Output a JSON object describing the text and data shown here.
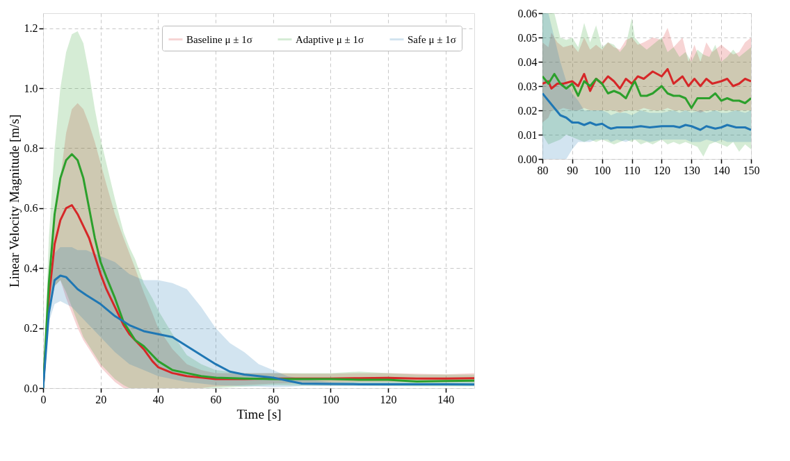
{
  "chart_data": [
    {
      "type": "line",
      "xlabel": "Time [s]",
      "ylabel": "Linear Velocity Magnitude [m/s]",
      "xlim": [
        0,
        150
      ],
      "ylim": [
        0,
        1.25
      ],
      "xticks": [
        0,
        20,
        40,
        60,
        80,
        100,
        120,
        140
      ],
      "yticks": [
        {
          "value": 0,
          "label": "0.0"
        },
        0.2,
        0.4,
        0.6,
        0.8,
        {
          "value": 1,
          "label": "1.0"
        },
        1.2
      ],
      "grid": true,
      "legend": "top right",
      "line_style": "solid",
      "series": [
        {
          "name": "Baseline μ ± 1σ",
          "color": "#d62728",
          "x": [
            0,
            2,
            4,
            6,
            8,
            10,
            12,
            14,
            16,
            18,
            20,
            22,
            25,
            28,
            30,
            32,
            35,
            38,
            40,
            45,
            50,
            55,
            60,
            70,
            80,
            90,
            100,
            110,
            120,
            130,
            140,
            150
          ],
          "values": [
            0,
            0.3,
            0.48,
            0.56,
            0.6,
            0.61,
            0.58,
            0.54,
            0.5,
            0.44,
            0.38,
            0.33,
            0.27,
            0.21,
            0.18,
            0.16,
            0.13,
            0.09,
            0.07,
            0.05,
            0.04,
            0.035,
            0.03,
            0.03,
            0.032,
            0.032,
            0.032,
            0.033,
            0.034,
            0.032,
            0.032,
            0.033
          ],
          "lower": [
            0,
            0.25,
            0.34,
            0.36,
            0.3,
            0.25,
            0.2,
            0.16,
            0.13,
            0.1,
            0.07,
            0.05,
            0.02,
            0,
            0,
            0,
            0,
            0,
            0,
            0,
            0,
            0,
            0.005,
            0.01,
            0.015,
            0.017,
            0.018,
            0.02,
            0.02,
            0.02,
            0.02,
            0.02
          ],
          "upper": [
            0,
            0.4,
            0.55,
            0.7,
            0.85,
            0.93,
            0.95,
            0.93,
            0.88,
            0.82,
            0.75,
            0.68,
            0.58,
            0.5,
            0.45,
            0.4,
            0.32,
            0.25,
            0.2,
            0.13,
            0.08,
            0.06,
            0.05,
            0.05,
            0.05,
            0.048,
            0.048,
            0.05,
            0.05,
            0.048,
            0.046,
            0.05
          ]
        },
        {
          "name": "Adaptive μ ± 1σ",
          "color": "#2ca02c",
          "x": [
            0,
            2,
            4,
            6,
            8,
            10,
            12,
            14,
            16,
            18,
            20,
            22,
            25,
            28,
            30,
            32,
            35,
            38,
            40,
            45,
            50,
            55,
            60,
            70,
            80,
            90,
            100,
            110,
            120,
            130,
            140,
            150
          ],
          "values": [
            0,
            0.35,
            0.58,
            0.7,
            0.76,
            0.78,
            0.76,
            0.7,
            0.6,
            0.5,
            0.42,
            0.37,
            0.3,
            0.22,
            0.19,
            0.16,
            0.14,
            0.11,
            0.09,
            0.06,
            0.05,
            0.04,
            0.035,
            0.032,
            0.03,
            0.03,
            0.03,
            0.028,
            0.028,
            0.022,
            0.024,
            0.025
          ],
          "lower": [
            0,
            0.25,
            0.34,
            0.36,
            0.32,
            0.27,
            0.22,
            0.17,
            0.14,
            0.11,
            0.08,
            0.06,
            0.03,
            0.01,
            0,
            0,
            0,
            0,
            0,
            0,
            0,
            0,
            0,
            0.005,
            0.01,
            0.008,
            0.008,
            0.008,
            0.007,
            0.006,
            0.006,
            0.006
          ],
          "upper": [
            0,
            0.5,
            0.8,
            1.0,
            1.12,
            1.18,
            1.19,
            1.15,
            1.05,
            0.93,
            0.83,
            0.75,
            0.63,
            0.52,
            0.47,
            0.43,
            0.35,
            0.3,
            0.26,
            0.18,
            0.11,
            0.08,
            0.06,
            0.05,
            0.05,
            0.05,
            0.05,
            0.055,
            0.05,
            0.045,
            0.045,
            0.045
          ]
        },
        {
          "name": "Safe μ ± 1σ",
          "color": "#1f77b4",
          "x": [
            0,
            2,
            4,
            6,
            8,
            10,
            12,
            15,
            20,
            25,
            30,
            35,
            40,
            45,
            50,
            55,
            60,
            65,
            70,
            75,
            80,
            85,
            90,
            100,
            110,
            120,
            130,
            140,
            150
          ],
          "values": [
            0,
            0.25,
            0.36,
            0.375,
            0.37,
            0.35,
            0.33,
            0.31,
            0.28,
            0.24,
            0.21,
            0.19,
            0.18,
            0.17,
            0.14,
            0.11,
            0.08,
            0.055,
            0.045,
            0.04,
            0.035,
            0.025,
            0.015,
            0.014,
            0.013,
            0.013,
            0.013,
            0.013,
            0.012
          ],
          "lower": [
            0,
            0.22,
            0.28,
            0.29,
            0.28,
            0.27,
            0.25,
            0.22,
            0.17,
            0.12,
            0.08,
            0.06,
            0.04,
            0.03,
            0.02,
            0.015,
            0.01,
            0.008,
            0.006,
            0.005,
            0.003,
            0.004,
            0.007,
            0.007,
            0.007,
            0.007,
            0.007,
            0.007,
            0.007
          ],
          "upper": [
            0,
            0.35,
            0.45,
            0.47,
            0.47,
            0.47,
            0.46,
            0.46,
            0.44,
            0.42,
            0.38,
            0.36,
            0.36,
            0.35,
            0.33,
            0.27,
            0.2,
            0.15,
            0.12,
            0.08,
            0.06,
            0.04,
            0.03,
            0.02,
            0.02,
            0.02,
            0.02,
            0.02,
            0.02
          ]
        }
      ]
    },
    {
      "type": "line",
      "xlim": [
        80,
        150
      ],
      "ylim": [
        0,
        0.06
      ],
      "xticks": [
        80,
        90,
        100,
        110,
        120,
        130,
        140,
        150
      ],
      "yticks": [
        {
          "value": 0,
          "label": "0.00"
        },
        {
          "value": 0.01,
          "label": "0.01"
        },
        {
          "value": 0.02,
          "label": "0.02"
        },
        {
          "value": 0.03,
          "label": "0.03"
        },
        {
          "value": 0.04,
          "label": "0.04"
        },
        {
          "value": 0.05,
          "label": "0.05"
        },
        {
          "value": 0.06,
          "label": "0.06"
        }
      ],
      "grid": true,
      "line_style": "solid",
      "series": [
        {
          "color": "#d62728",
          "x": [
            80,
            82,
            83,
            85,
            87,
            90,
            92,
            94,
            96,
            98,
            100,
            102,
            104,
            106,
            108,
            110,
            112,
            114,
            117,
            120,
            122,
            124,
            127,
            129,
            131,
            133,
            135,
            137,
            140,
            142,
            144,
            146,
            148,
            150
          ],
          "values": [
            0.031,
            0.032,
            0.029,
            0.031,
            0.031,
            0.032,
            0.03,
            0.035,
            0.028,
            0.033,
            0.031,
            0.034,
            0.032,
            0.029,
            0.033,
            0.031,
            0.034,
            0.033,
            0.036,
            0.034,
            0.037,
            0.031,
            0.034,
            0.03,
            0.033,
            0.03,
            0.033,
            0.031,
            0.032,
            0.033,
            0.03,
            0.031,
            0.033,
            0.032
          ],
          "lower": [
            0.015,
            0.017,
            0.02,
            0.02,
            0.021,
            0.02,
            0.02,
            0.021,
            0.02,
            0.02,
            0.02,
            0.02,
            0.02,
            0.019,
            0.02,
            0.02,
            0.02,
            0.021,
            0.02,
            0.02,
            0.021,
            0.02,
            0.02,
            0.02,
            0.02,
            0.019,
            0.02,
            0.02,
            0.02,
            0.02,
            0.02,
            0.02,
            0.02,
            0.02
          ],
          "upper": [
            0.048,
            0.046,
            0.052,
            0.048,
            0.046,
            0.047,
            0.044,
            0.05,
            0.045,
            0.047,
            0.045,
            0.048,
            0.046,
            0.045,
            0.049,
            0.05,
            0.047,
            0.048,
            0.05,
            0.049,
            0.054,
            0.046,
            0.05,
            0.04,
            0.047,
            0.04,
            0.048,
            0.044,
            0.047,
            0.045,
            0.043,
            0.044,
            0.048,
            0.05
          ]
        },
        {
          "color": "#2ca02c",
          "x": [
            80,
            82,
            84,
            86,
            88,
            90,
            92,
            94,
            96,
            98,
            100,
            102,
            104,
            106,
            108,
            110,
            111,
            113,
            115,
            117,
            120,
            122,
            124,
            126,
            128,
            130,
            132,
            134,
            136,
            138,
            140,
            142,
            144,
            146,
            148,
            150
          ],
          "values": [
            0.034,
            0.031,
            0.035,
            0.031,
            0.029,
            0.031,
            0.026,
            0.032,
            0.03,
            0.033,
            0.031,
            0.027,
            0.028,
            0.027,
            0.025,
            0.03,
            0.032,
            0.026,
            0.026,
            0.027,
            0.03,
            0.027,
            0.026,
            0.026,
            0.025,
            0.021,
            0.025,
            0.025,
            0.025,
            0.027,
            0.024,
            0.025,
            0.024,
            0.024,
            0.023,
            0.025
          ],
          "lower": [
            0.01,
            0.006,
            0.007,
            0.008,
            0.01,
            0.009,
            0.008,
            0.007,
            0.008,
            0.007,
            0.008,
            0.007,
            0.006,
            0.007,
            0.008,
            0.007,
            0.008,
            0.006,
            0.007,
            0.006,
            0.008,
            0.006,
            0.007,
            0.006,
            0.007,
            0.006,
            0.005,
            0.001,
            0.006,
            0.007,
            0.006,
            0.005,
            0.007,
            0.003,
            0.006,
            0.004
          ],
          "upper": [
            0.06,
            0.06,
            0.06,
            0.05,
            0.049,
            0.05,
            0.046,
            0.056,
            0.048,
            0.055,
            0.046,
            0.048,
            0.047,
            0.044,
            0.047,
            0.058,
            0.05,
            0.047,
            0.045,
            0.047,
            0.05,
            0.044,
            0.046,
            0.042,
            0.044,
            0.04,
            0.045,
            0.043,
            0.042,
            0.047,
            0.04,
            0.042,
            0.045,
            0.042,
            0.044,
            0.046
          ]
        },
        {
          "color": "#1f77b4",
          "x": [
            80,
            82,
            84,
            86,
            88,
            90,
            92,
            94,
            96,
            98,
            100,
            102,
            103,
            105,
            108,
            110,
            113,
            116,
            120,
            124,
            126,
            128,
            130,
            133,
            135,
            138,
            140,
            142,
            145,
            148,
            150
          ],
          "values": [
            0.027,
            0.024,
            0.021,
            0.018,
            0.017,
            0.015,
            0.015,
            0.014,
            0.015,
            0.014,
            0.0145,
            0.013,
            0.0125,
            0.013,
            0.013,
            0.013,
            0.0135,
            0.013,
            0.0135,
            0.0135,
            0.013,
            0.014,
            0.0135,
            0.012,
            0.0135,
            0.0125,
            0.013,
            0.014,
            0.013,
            0.013,
            0.012
          ],
          "lower": [
            0.0,
            0.0,
            0.0,
            0.0,
            0.0,
            0.004,
            0.007,
            0.007,
            0.007,
            0.008,
            0.008,
            0.008,
            0.007,
            0.008,
            0.007,
            0.008,
            0.008,
            0.007,
            0.008,
            0.008,
            0.008,
            0.008,
            0.007,
            0.007,
            0.008,
            0.007,
            0.008,
            0.007,
            0.007,
            0.007,
            0.007
          ],
          "upper": [
            0.06,
            0.06,
            0.05,
            0.04,
            0.032,
            0.027,
            0.024,
            0.02,
            0.02,
            0.02,
            0.02,
            0.019,
            0.018,
            0.019,
            0.019,
            0.018,
            0.02,
            0.019,
            0.019,
            0.02,
            0.019,
            0.02,
            0.019,
            0.02,
            0.019,
            0.02,
            0.019,
            0.019,
            0.02,
            0.019,
            0.02
          ]
        }
      ]
    }
  ]
}
